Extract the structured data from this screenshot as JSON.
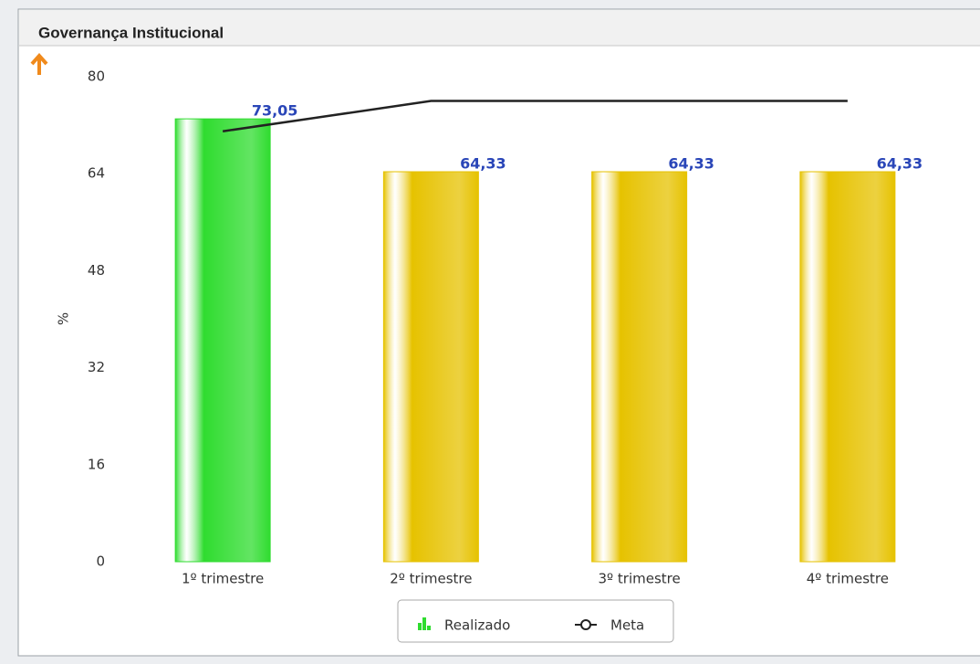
{
  "chart_data": {
    "type": "bar",
    "title": "Governança Institucional",
    "y_label": "%",
    "categories": [
      "1º trimestre",
      "2º trimestre",
      "3º trimestre",
      "4º trimestre"
    ],
    "ylim": [
      0,
      80
    ],
    "yticks": [
      0,
      16,
      32,
      48,
      64,
      80
    ],
    "series": [
      {
        "name": "Realizado",
        "type": "bar",
        "colors": [
          "#2fdc2f",
          "#e6c200",
          "#e6c200",
          "#e6c200"
        ],
        "values": [
          73.05,
          64.33,
          64.33,
          64.33
        ],
        "value_labels": [
          "73,05",
          "64,33",
          "64,33",
          "64,33"
        ]
      },
      {
        "name": "Meta",
        "type": "line",
        "color": "#222222",
        "values": [
          71,
          76,
          76,
          76
        ]
      }
    ]
  }
}
